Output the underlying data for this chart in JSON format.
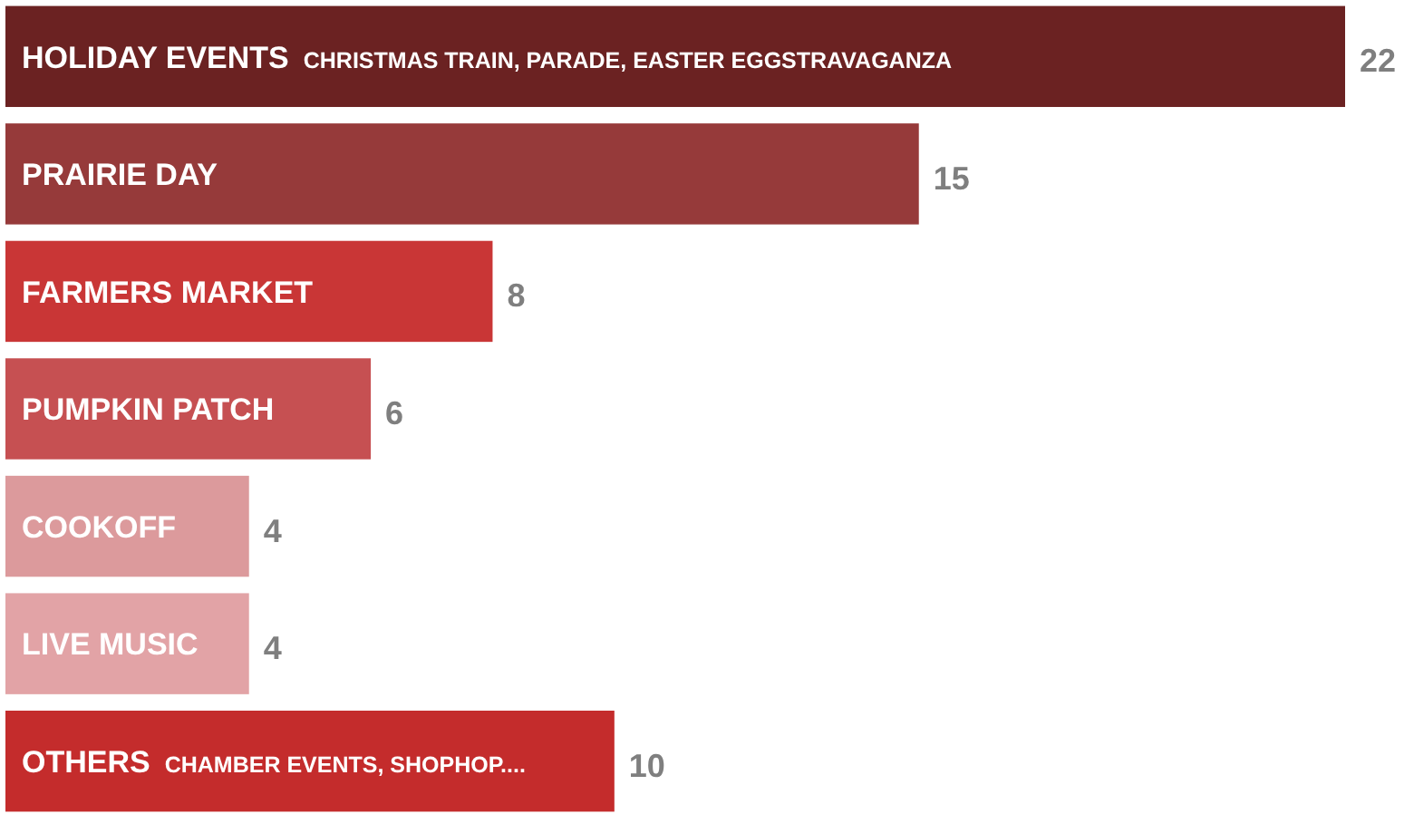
{
  "chart_data": {
    "type": "bar",
    "orientation": "horizontal",
    "categories": [
      "HOLIDAY EVENTS",
      "PRAIRIE DAY",
      "FARMERS MARKET",
      "PUMPKIN PATCH",
      "COOKOFF",
      "LIVE MUSIC",
      "OTHERS"
    ],
    "values": [
      22,
      15,
      8,
      6,
      4,
      4,
      10
    ],
    "colors": [
      "#6b2222",
      "#963a3a",
      "#c93636",
      "#c65052",
      "#dc9a9c",
      "#e2a3a6",
      "#c42c2c"
    ],
    "data_labels": true,
    "annotations": [
      {
        "text": "CHRISTMAS TRAIN, PARADE, EASTER EGGSTRAVAGANZA",
        "y": "HOLIDAY EVENTS"
      },
      {
        "text": "CHAMBER EVENTS, SHOPHOP....",
        "y": "OTHERS"
      }
    ]
  }
}
